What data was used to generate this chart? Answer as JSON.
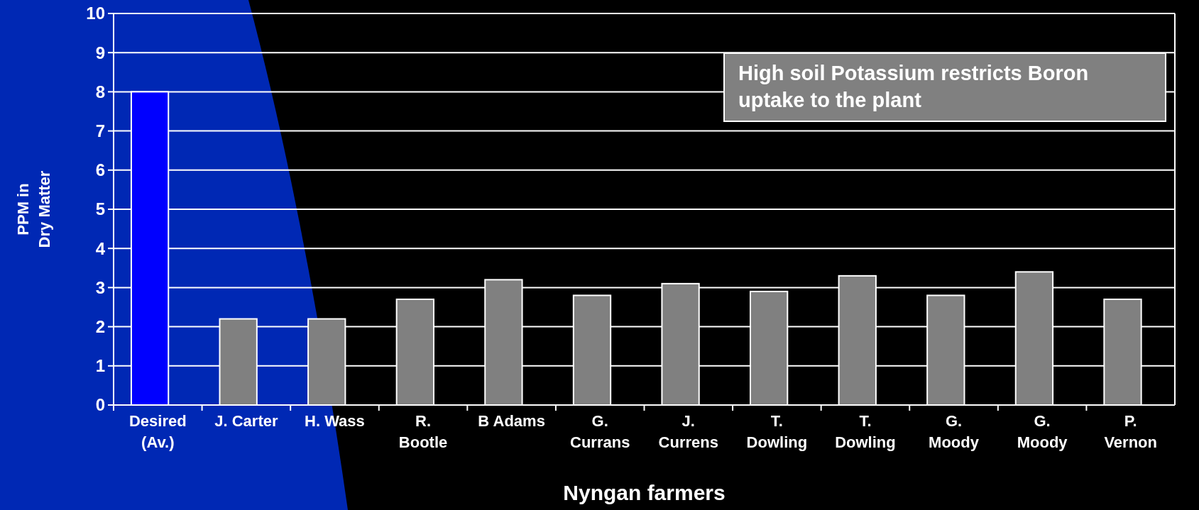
{
  "chart_data": {
    "type": "bar",
    "xlabel": "Nyngan farmers",
    "ylabel": "PPM in\nDry Matter",
    "categories": [
      "Desired\n(Av.)",
      "J. Carter",
      "H. Wass",
      "R.\nBootle",
      "B Adams",
      "G.\nCurrans",
      "J.\nCurrens",
      "T.\nDowling",
      "T.\nDowling",
      "G.\nMoody",
      "G.\nMoody",
      "P.\nVernon"
    ],
    "values": [
      8,
      2.2,
      2.2,
      2.7,
      3.2,
      2.8,
      3.1,
      2.9,
      3.3,
      2.8,
      3.4,
      2.7
    ],
    "colors": [
      "#0000ff",
      "#808080",
      "#808080",
      "#808080",
      "#808080",
      "#808080",
      "#808080",
      "#808080",
      "#808080",
      "#808080",
      "#808080",
      "#808080"
    ],
    "ylim": [
      0,
      10
    ],
    "yticks": [
      0,
      1,
      2,
      3,
      4,
      5,
      6,
      7,
      8,
      9,
      10
    ],
    "grid": "y",
    "annotations": [
      "High soil Potassium restricts Boron uptake to the plant"
    ]
  }
}
